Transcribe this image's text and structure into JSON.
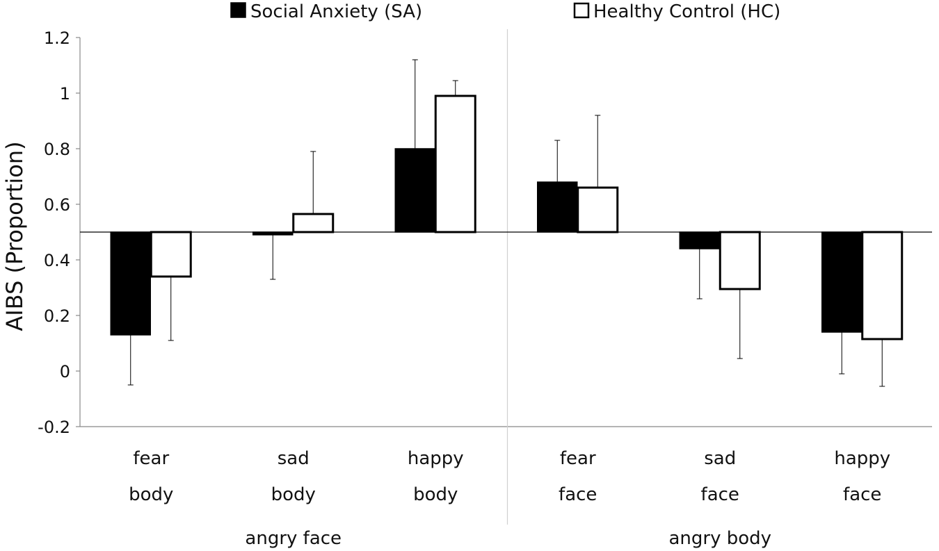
{
  "chart_data": {
    "type": "bar",
    "baseline": 0.5,
    "ylabel": "AIBS (Proportion)",
    "xlabel": "",
    "ylim": [
      -0.2,
      1.2
    ],
    "yticks": [
      -0.2,
      0,
      0.2,
      0.4,
      0.6,
      0.8,
      1,
      1.2
    ],
    "ytick_labels": [
      "-0.2",
      "0",
      "0.2",
      "0.4",
      "0.6",
      "0.8",
      "1",
      "1.2"
    ],
    "legend_position": "top",
    "groups": [
      {
        "label": "angry face",
        "category_count": 3
      },
      {
        "label": "angry body",
        "category_count": 3
      }
    ],
    "categories": [
      {
        "line1": "fear",
        "line2": "body"
      },
      {
        "line1": "sad",
        "line2": "body"
      },
      {
        "line1": "happy",
        "line2": "body"
      },
      {
        "line1": "fear",
        "line2": "face"
      },
      {
        "line1": "sad",
        "line2": "face"
      },
      {
        "line1": "happy",
        "line2": "face"
      }
    ],
    "series": [
      {
        "name": "Social Anxiety (SA)",
        "fill": "#000000",
        "values": [
          0.13,
          0.49,
          0.8,
          0.68,
          0.44,
          0.14
        ],
        "errors": [
          0.18,
          0.16,
          0.32,
          0.15,
          0.18,
          0.15
        ]
      },
      {
        "name": "Healthy Control (HC)",
        "fill": "#ffffff",
        "values": [
          0.34,
          0.565,
          0.99,
          0.66,
          0.295,
          0.115
        ],
        "errors": [
          0.23,
          0.225,
          0.055,
          0.26,
          0.25,
          0.17
        ]
      }
    ]
  }
}
